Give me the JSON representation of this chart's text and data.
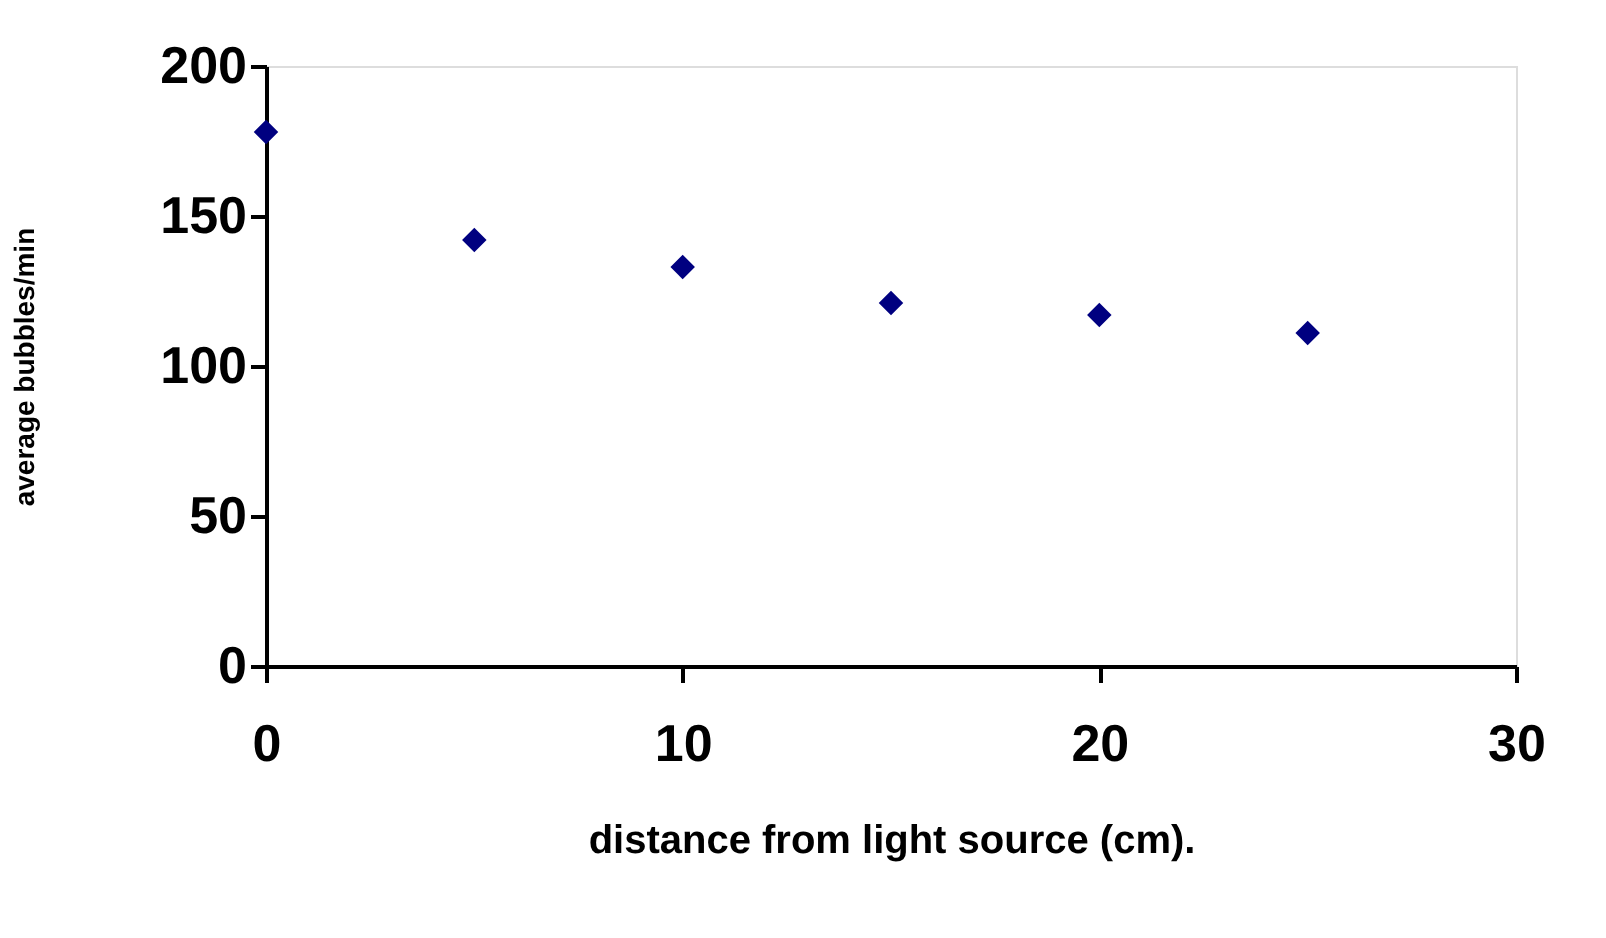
{
  "chart_data": {
    "type": "scatter",
    "xlabel": "distance from light source (cm).",
    "ylabel": "average bubbles/min",
    "x": [
      0,
      5,
      10,
      15,
      20,
      25
    ],
    "series": [
      {
        "color": "#000080",
        "values": [
          178,
          142,
          133,
          121,
          117,
          111
        ]
      }
    ],
    "xlim": [
      0,
      30
    ],
    "xticks": [
      0,
      10,
      20,
      30
    ],
    "ylim": [
      0,
      200
    ],
    "yticks": [
      0,
      50,
      100,
      150,
      200
    ],
    "marker": "diamond",
    "grid": false
  }
}
